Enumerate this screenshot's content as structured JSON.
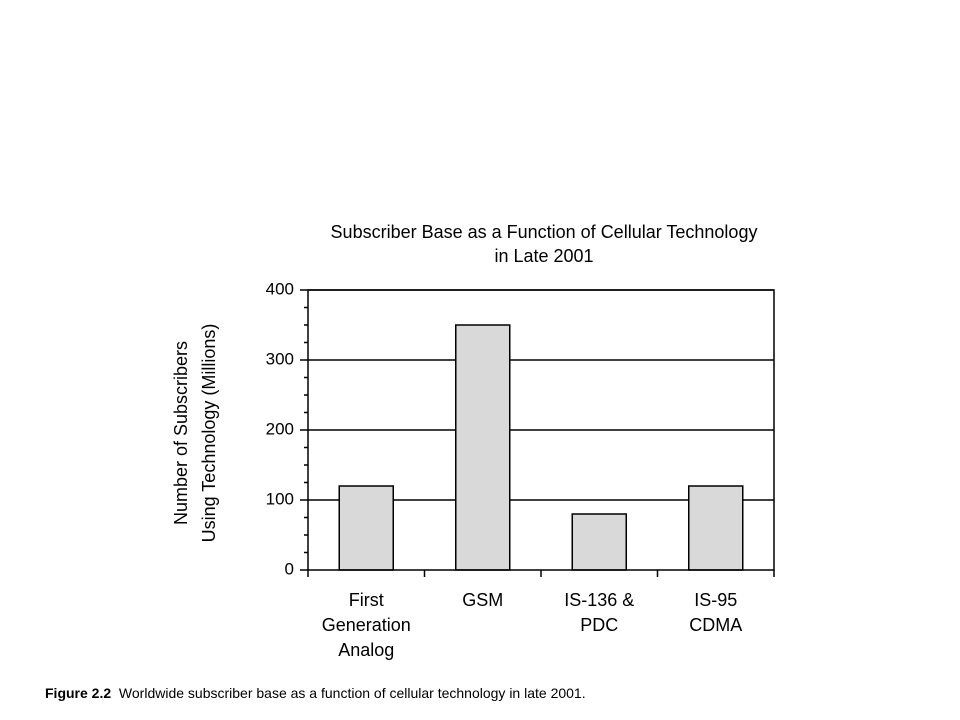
{
  "caption": {
    "label": "Figure 2.2",
    "text": "Worldwide subscriber base as a function of cellular technology in late 2001."
  },
  "chart_data": {
    "type": "bar",
    "title": [
      "Subscriber Base as a Function of Cellular Technology",
      "in Late 2001"
    ],
    "ylabel": [
      "Number of Subscribers",
      "Using Technology (Millions)"
    ],
    "xlabel": "",
    "categories": [
      [
        "First",
        "Generation",
        "Analog"
      ],
      [
        "GSM"
      ],
      [
        "IS-136 &",
        "PDC"
      ],
      [
        "IS-95",
        "CDMA"
      ]
    ],
    "values": [
      120,
      350,
      80,
      120
    ],
    "ylim": [
      0,
      400
    ],
    "yticks": [
      0,
      100,
      200,
      300,
      400
    ],
    "grid": true,
    "bar_color": "#d9d9d9",
    "edge_color": "#000000"
  }
}
